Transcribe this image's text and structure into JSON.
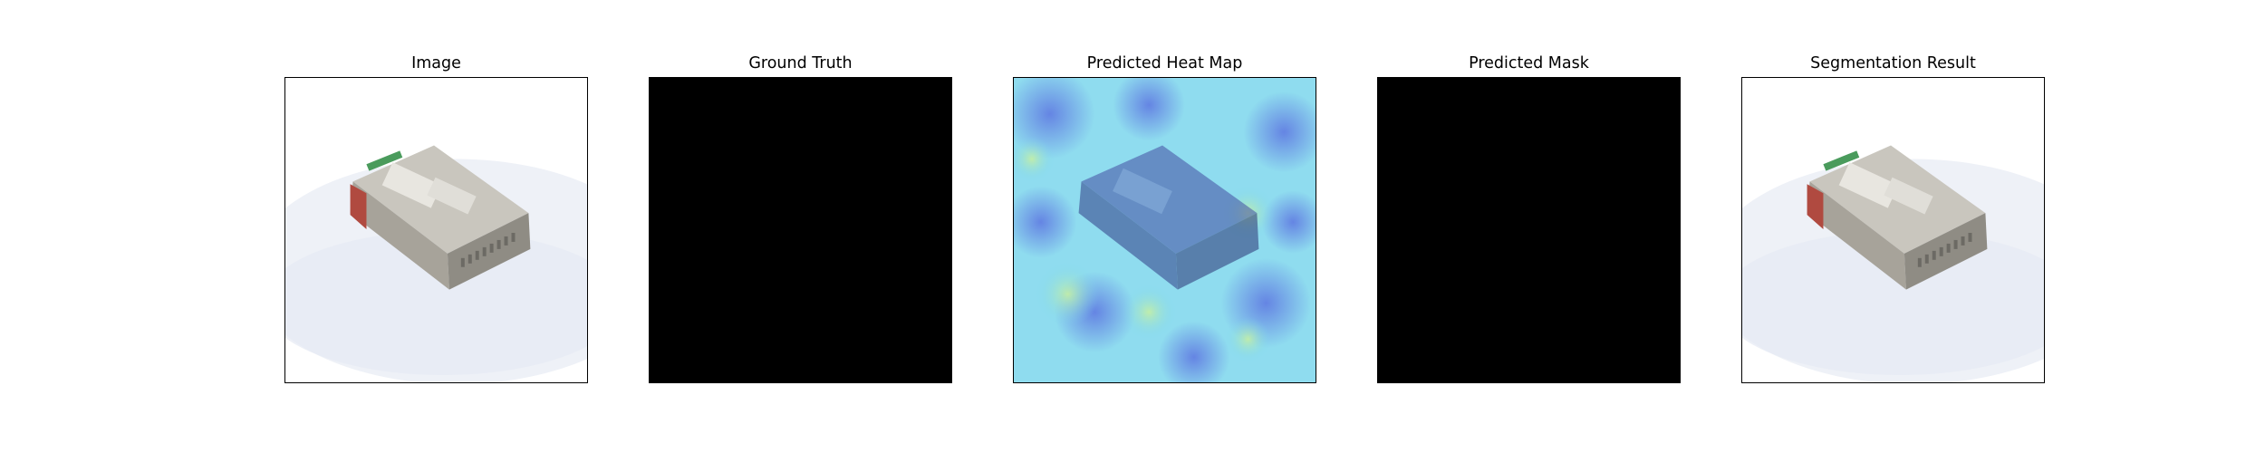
{
  "panels": [
    {
      "title": "Image",
      "content": "photo"
    },
    {
      "title": "Ground Truth",
      "content": "black-mask"
    },
    {
      "title": "Predicted Heat Map",
      "content": "heatmap-overlay"
    },
    {
      "title": "Predicted Mask",
      "content": "black-mask"
    },
    {
      "title": "Segmentation Result",
      "content": "photo"
    }
  ],
  "colors": {
    "mask": "#000000",
    "frame": "#000000",
    "heatmap_low": "#5a6fe0",
    "heatmap_mid": "#7ad7f0",
    "heatmap_high": "#c8f0a0",
    "device_body": "#9a9890",
    "device_side_red": "#b04a40",
    "shadow_bg": "#eef1f7"
  }
}
